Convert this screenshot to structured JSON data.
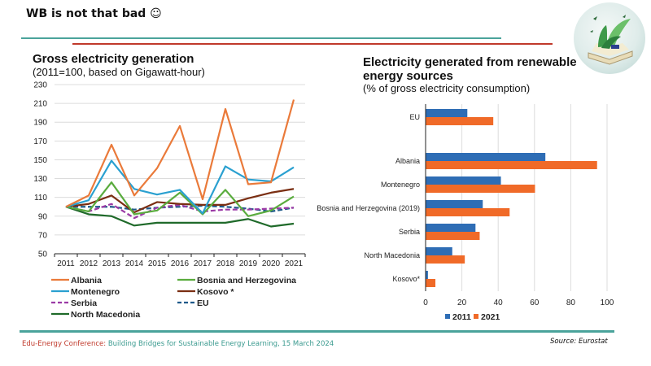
{
  "slide": {
    "title": "WB is not that bad ☺",
    "footer_conference": "Edu-Energy Conference:",
    "footer_text": " Building Bridges for Sustainable Energy Learning, 15 March 2024",
    "source": "Source: Eurostat",
    "logo_icon": "book-with-plants-illustration"
  },
  "colors": {
    "teal_rule": "#4aa39b",
    "red_rule": "#c0392b",
    "bar_2011": "#2e6db5",
    "bar_2021": "#f06a28"
  },
  "chart_data": [
    {
      "type": "line",
      "title": "Gross electricity generation",
      "subtitle": "(2011=100, based on Gigawatt-hour)",
      "xlabel": "",
      "ylabel": "",
      "x": [
        "2011",
        "2012",
        "2013",
        "2014",
        "2015",
        "2016",
        "2017",
        "2018",
        "2019",
        "2020",
        "2021"
      ],
      "ylim": [
        50,
        230
      ],
      "yticks": [
        50,
        70,
        90,
        110,
        130,
        150,
        170,
        190,
        210,
        230
      ],
      "grid": true,
      "legend": "bottom",
      "series": [
        {
          "name": "Albania",
          "color": "#ea7a3a",
          "dash": false,
          "values": [
            100,
            112,
            166,
            112,
            141,
            186,
            108,
            204,
            124,
            126,
            214
          ]
        },
        {
          "name": "Bosnia and Herzegovina",
          "color": "#5aac3e",
          "dash": false,
          "values": [
            100,
            95,
            126,
            92,
            96,
            115,
            92,
            118,
            90,
            96,
            111
          ]
        },
        {
          "name": "Montenegro",
          "color": "#2aa0d0",
          "dash": false,
          "values": [
            100,
            107,
            149,
            119,
            113,
            118,
            93,
            143,
            129,
            127,
            142
          ]
        },
        {
          "name": "Kosovo *",
          "color": "#7a2e12",
          "dash": false,
          "values": [
            100,
            103,
            112,
            94,
            105,
            103,
            102,
            102,
            109,
            115,
            119
          ]
        },
        {
          "name": "Serbia",
          "color": "#9b3aa5",
          "dash": true,
          "values": [
            100,
            95,
            103,
            88,
            99,
            102,
            95,
            97,
            97,
            98,
            99
          ]
        },
        {
          "name": "EU",
          "color": "#1f5a8a",
          "dash": true,
          "values": [
            100,
            100,
            100,
            97,
            99,
            100,
            101,
            100,
            98,
            95,
            99
          ]
        },
        {
          "name": "North Macedonia",
          "color": "#1f6a2a",
          "dash": false,
          "values": [
            100,
            92,
            90,
            80,
            83,
            83,
            83,
            83,
            87,
            79,
            82
          ]
        }
      ]
    },
    {
      "type": "bar",
      "orientation": "horizontal",
      "title": "Electricity generated from renewable energy sources",
      "subtitle": "(% of gross electricity consumption)",
      "xlabel": "",
      "ylabel": "",
      "xlim": [
        0,
        100
      ],
      "xticks": [
        0,
        20,
        40,
        60,
        80,
        100
      ],
      "grid": true,
      "legend": "bottom",
      "categories": [
        "EU",
        "Albania",
        "Montenegro",
        "Bosnia and Herzegovina (2019)",
        "Serbia",
        "North Macedonia",
        "Kosovo*"
      ],
      "series": [
        {
          "name": "2011",
          "color": "#2e6db5",
          "values": [
            23.0,
            66.0,
            41.5,
            31.5,
            27.5,
            14.7,
            1.3
          ]
        },
        {
          "name": "2021",
          "color": "#f06a28",
          "values": [
            37.3,
            94.5,
            60.3,
            46.3,
            29.8,
            21.6,
            5.4
          ]
        }
      ]
    }
  ]
}
